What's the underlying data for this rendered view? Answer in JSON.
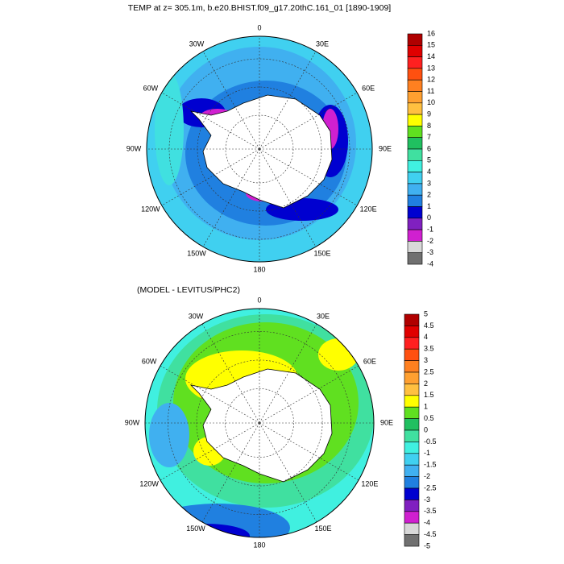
{
  "panels": [
    {
      "title": "TEMP at z= 305.1m, b.e20.BHIST.f09_g17.20thC.161_01 [1890-1909]",
      "longitude_labels": [
        "0",
        "30E",
        "60E",
        "90E",
        "120E",
        "150E",
        "180",
        "150W",
        "120W",
        "90W",
        "60W",
        "30W"
      ],
      "colorbar": {
        "labels": [
          "16",
          "15",
          "14",
          "13",
          "12",
          "11",
          "10",
          "9",
          "8",
          "7",
          "6",
          "5",
          "4",
          "3",
          "2",
          "1",
          "0",
          "-1",
          "-2",
          "-3",
          "-4"
        ],
        "colors": [
          "#b00000",
          "#e00000",
          "#ff2020",
          "#ff5010",
          "#ff8020",
          "#ffa030",
          "#ffc040",
          "#ffff00",
          "#60e020",
          "#20c060",
          "#40e0a0",
          "#40f0e0",
          "#40d0f0",
          "#40b0f0",
          "#2080e0",
          "#0000d0",
          "#8020c0",
          "#d020d0",
          "#d8d8d8",
          "#707070"
        ]
      }
    },
    {
      "title": "(MODEL - LEVITUS/PHC2)",
      "longitude_labels": [
        "0",
        "30E",
        "60E",
        "90E",
        "120E",
        "150E",
        "180",
        "150W",
        "120W",
        "90W",
        "60W",
        "30W"
      ],
      "colorbar": {
        "labels": [
          "5",
          "4.5",
          "4",
          "3.5",
          "3",
          "2.5",
          "2",
          "1.5",
          "1",
          "0.5",
          "0",
          "-0.5",
          "-1",
          "-1.5",
          "-2",
          "-2.5",
          "-3",
          "-3.5",
          "-4",
          "-4.5",
          "-5"
        ],
        "colors": [
          "#b00000",
          "#e00000",
          "#ff2020",
          "#ff5010",
          "#ff8020",
          "#ffa030",
          "#ffc040",
          "#ffff00",
          "#60e020",
          "#20c060",
          "#40e0a0",
          "#40f0e0",
          "#40d0f0",
          "#40b0f0",
          "#2080e0",
          "#0000d0",
          "#8020c0",
          "#d020d0",
          "#d8d8d8",
          "#707070"
        ]
      }
    }
  ]
}
